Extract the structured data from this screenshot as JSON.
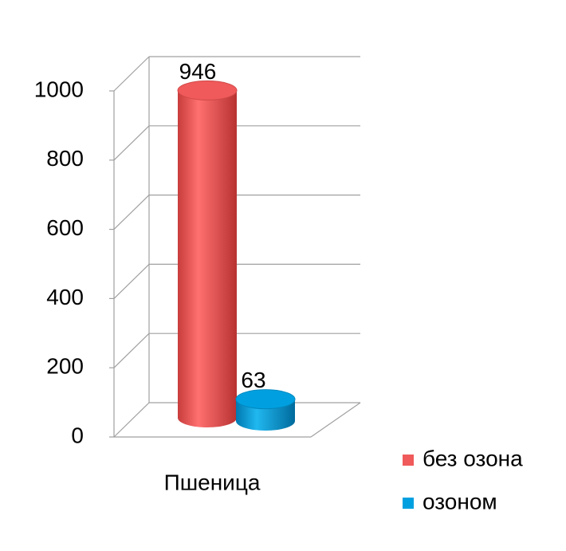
{
  "chart_data": {
    "type": "bar3d",
    "categories": [
      "Пшеница"
    ],
    "series": [
      {
        "name": "без озона",
        "color": "#f05a5a",
        "values": [
          946
        ]
      },
      {
        "name": "озоном",
        "color": "#00a0e0",
        "values": [
          63
        ]
      }
    ],
    "ylim": [
      0,
      1000
    ],
    "yticks": [
      0,
      200,
      400,
      600,
      800,
      1000
    ],
    "grid": true
  }
}
